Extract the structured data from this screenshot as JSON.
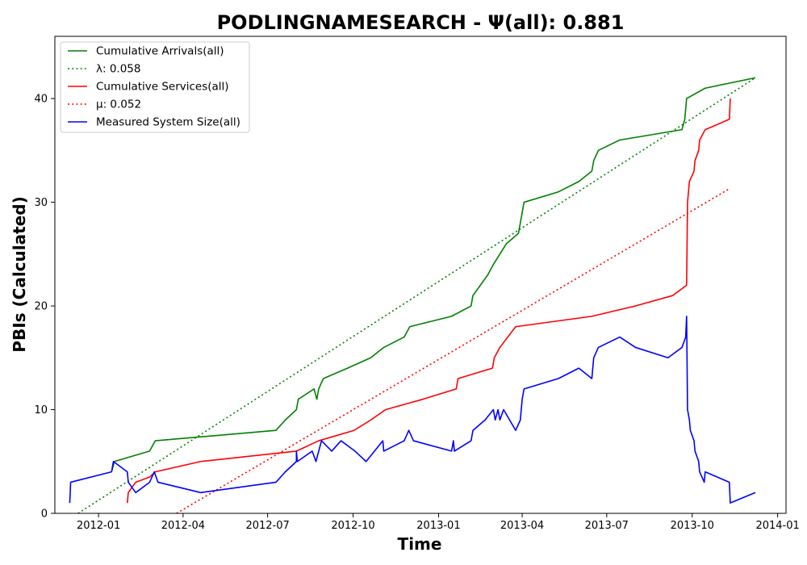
{
  "chart_data": {
    "type": "line",
    "title": "PODLINGNAMESEARCH -  Ψ(all): 0.881",
    "xlabel": "Time",
    "ylabel": "PBIs (Calculated)",
    "xlim": [
      "2011-11-15",
      "2014-01-10"
    ],
    "ylim": [
      0,
      46
    ],
    "x_ticks": [
      "2012-01",
      "2012-04",
      "2012-07",
      "2012-10",
      "2013-01",
      "2013-04",
      "2013-07",
      "2013-10",
      "2014-01"
    ],
    "y_ticks": [
      0,
      10,
      20,
      30,
      40
    ],
    "grid": false,
    "legend_position": "top-left",
    "series": [
      {
        "name": "Cumulative Arrivals(all)",
        "color": "#008000",
        "style": "solid",
        "points": [
          [
            "2012-01-15",
            4
          ],
          [
            "2012-01-18",
            5
          ],
          [
            "2012-02-25",
            6
          ],
          [
            "2012-03-02",
            7
          ],
          [
            "2012-07-10",
            8
          ],
          [
            "2012-07-20",
            9
          ],
          [
            "2012-08-01",
            10
          ],
          [
            "2012-08-03",
            11
          ],
          [
            "2012-08-20",
            12
          ],
          [
            "2012-08-23",
            11
          ],
          [
            "2012-08-25",
            12
          ],
          [
            "2012-08-30",
            13
          ],
          [
            "2012-09-25",
            14
          ],
          [
            "2012-10-20",
            15
          ],
          [
            "2012-11-03",
            16
          ],
          [
            "2012-11-25",
            17
          ],
          [
            "2012-12-01",
            18
          ],
          [
            "2013-01-15",
            19
          ],
          [
            "2013-02-05",
            20
          ],
          [
            "2013-02-07",
            21
          ],
          [
            "2013-02-15",
            22
          ],
          [
            "2013-02-23",
            23
          ],
          [
            "2013-03-01",
            24
          ],
          [
            "2013-03-08",
            25
          ],
          [
            "2013-03-15",
            26
          ],
          [
            "2013-03-28",
            27
          ],
          [
            "2013-03-30",
            28
          ],
          [
            "2013-04-01",
            29
          ],
          [
            "2013-04-03",
            30
          ],
          [
            "2013-05-10",
            31
          ],
          [
            "2013-06-01",
            32
          ],
          [
            "2013-06-15",
            33
          ],
          [
            "2013-06-17",
            34
          ],
          [
            "2013-06-22",
            35
          ],
          [
            "2013-07-15",
            36
          ],
          [
            "2013-09-20",
            37
          ],
          [
            "2013-09-23",
            38
          ],
          [
            "2013-09-25",
            40
          ],
          [
            "2013-10-15",
            41
          ],
          [
            "2013-12-08",
            42
          ]
        ]
      },
      {
        "name": "λ: 0.058",
        "color": "#008000",
        "style": "dotted",
        "points": [
          [
            "2011-12-10",
            0
          ],
          [
            "2013-12-08",
            42
          ]
        ]
      },
      {
        "name": "Cumulative Services(all)",
        "color": "#ff0000",
        "style": "solid",
        "points": [
          [
            "2012-02-01",
            1
          ],
          [
            "2012-02-02",
            2
          ],
          [
            "2012-02-10",
            3
          ],
          [
            "2012-02-25",
            3.5
          ],
          [
            "2012-03-02",
            4
          ],
          [
            "2012-04-20",
            5
          ],
          [
            "2012-08-01",
            6
          ],
          [
            "2012-08-25",
            7
          ],
          [
            "2012-10-02",
            8
          ],
          [
            "2012-10-20",
            9
          ],
          [
            "2012-11-05",
            10
          ],
          [
            "2012-12-15",
            11
          ],
          [
            "2013-01-20",
            12
          ],
          [
            "2013-01-22",
            13
          ],
          [
            "2013-02-28",
            14
          ],
          [
            "2013-03-02",
            15
          ],
          [
            "2013-03-08",
            16
          ],
          [
            "2013-03-25",
            18
          ],
          [
            "2013-06-15",
            19
          ],
          [
            "2013-08-01",
            20
          ],
          [
            "2013-09-10",
            21
          ],
          [
            "2013-09-25",
            22
          ],
          [
            "2013-09-26",
            30
          ],
          [
            "2013-09-28",
            32
          ],
          [
            "2013-10-03",
            33
          ],
          [
            "2013-10-04",
            34
          ],
          [
            "2013-10-08",
            35
          ],
          [
            "2013-10-09",
            36
          ],
          [
            "2013-10-15",
            37
          ],
          [
            "2013-11-10",
            38
          ],
          [
            "2013-11-11",
            40
          ]
        ]
      },
      {
        "name": "μ: 0.052",
        "color": "#ff0000",
        "style": "dotted",
        "points": [
          [
            "2012-03-25",
            0
          ],
          [
            "2013-11-10",
            31.3
          ]
        ]
      },
      {
        "name": "Measured System Size(all)",
        "color": "#0000ff",
        "style": "solid",
        "points": [
          [
            "2011-12-01",
            1
          ],
          [
            "2011-12-02",
            3
          ],
          [
            "2012-01-15",
            4
          ],
          [
            "2012-01-17",
            5
          ],
          [
            "2012-02-01",
            4
          ],
          [
            "2012-02-02",
            3
          ],
          [
            "2012-02-10",
            2
          ],
          [
            "2012-02-25",
            3
          ],
          [
            "2012-03-01",
            4
          ],
          [
            "2012-03-05",
            3
          ],
          [
            "2012-04-20",
            2
          ],
          [
            "2012-07-10",
            3
          ],
          [
            "2012-07-20",
            4
          ],
          [
            "2012-08-01",
            5
          ],
          [
            "2012-08-01",
            6
          ],
          [
            "2012-08-02",
            5
          ],
          [
            "2012-08-18",
            6
          ],
          [
            "2012-08-22",
            5
          ],
          [
            "2012-08-28",
            7
          ],
          [
            "2012-09-08",
            6
          ],
          [
            "2012-09-18",
            7
          ],
          [
            "2012-10-03",
            6
          ],
          [
            "2012-10-15",
            5
          ],
          [
            "2012-11-02",
            7
          ],
          [
            "2012-11-03",
            6
          ],
          [
            "2012-11-25",
            7
          ],
          [
            "2012-11-30",
            8
          ],
          [
            "2012-12-05",
            7
          ],
          [
            "2013-01-15",
            6
          ],
          [
            "2013-01-17",
            7
          ],
          [
            "2013-01-18",
            6
          ],
          [
            "2013-02-05",
            7
          ],
          [
            "2013-02-07",
            8
          ],
          [
            "2013-02-20",
            9
          ],
          [
            "2013-03-01",
            10
          ],
          [
            "2013-03-03",
            9
          ],
          [
            "2013-03-06",
            10
          ],
          [
            "2013-03-08",
            9
          ],
          [
            "2013-03-12",
            10
          ],
          [
            "2013-03-25",
            8
          ],
          [
            "2013-03-30",
            9
          ],
          [
            "2013-04-01",
            11
          ],
          [
            "2013-04-03",
            12
          ],
          [
            "2013-05-10",
            13
          ],
          [
            "2013-06-01",
            14
          ],
          [
            "2013-06-15",
            13
          ],
          [
            "2013-06-17",
            15
          ],
          [
            "2013-06-22",
            16
          ],
          [
            "2013-07-15",
            17
          ],
          [
            "2013-08-01",
            16
          ],
          [
            "2013-09-05",
            15
          ],
          [
            "2013-09-20",
            16
          ],
          [
            "2013-09-24",
            17
          ],
          [
            "2013-09-25",
            19
          ],
          [
            "2013-09-26",
            10
          ],
          [
            "2013-09-28",
            9
          ],
          [
            "2013-09-29",
            8
          ],
          [
            "2013-10-03",
            7
          ],
          [
            "2013-10-04",
            6
          ],
          [
            "2013-10-08",
            5
          ],
          [
            "2013-10-09",
            4
          ],
          [
            "2013-10-14",
            3
          ],
          [
            "2013-10-15",
            4
          ],
          [
            "2013-11-10",
            3
          ],
          [
            "2013-11-11",
            1
          ],
          [
            "2013-12-08",
            2
          ]
        ]
      }
    ]
  }
}
